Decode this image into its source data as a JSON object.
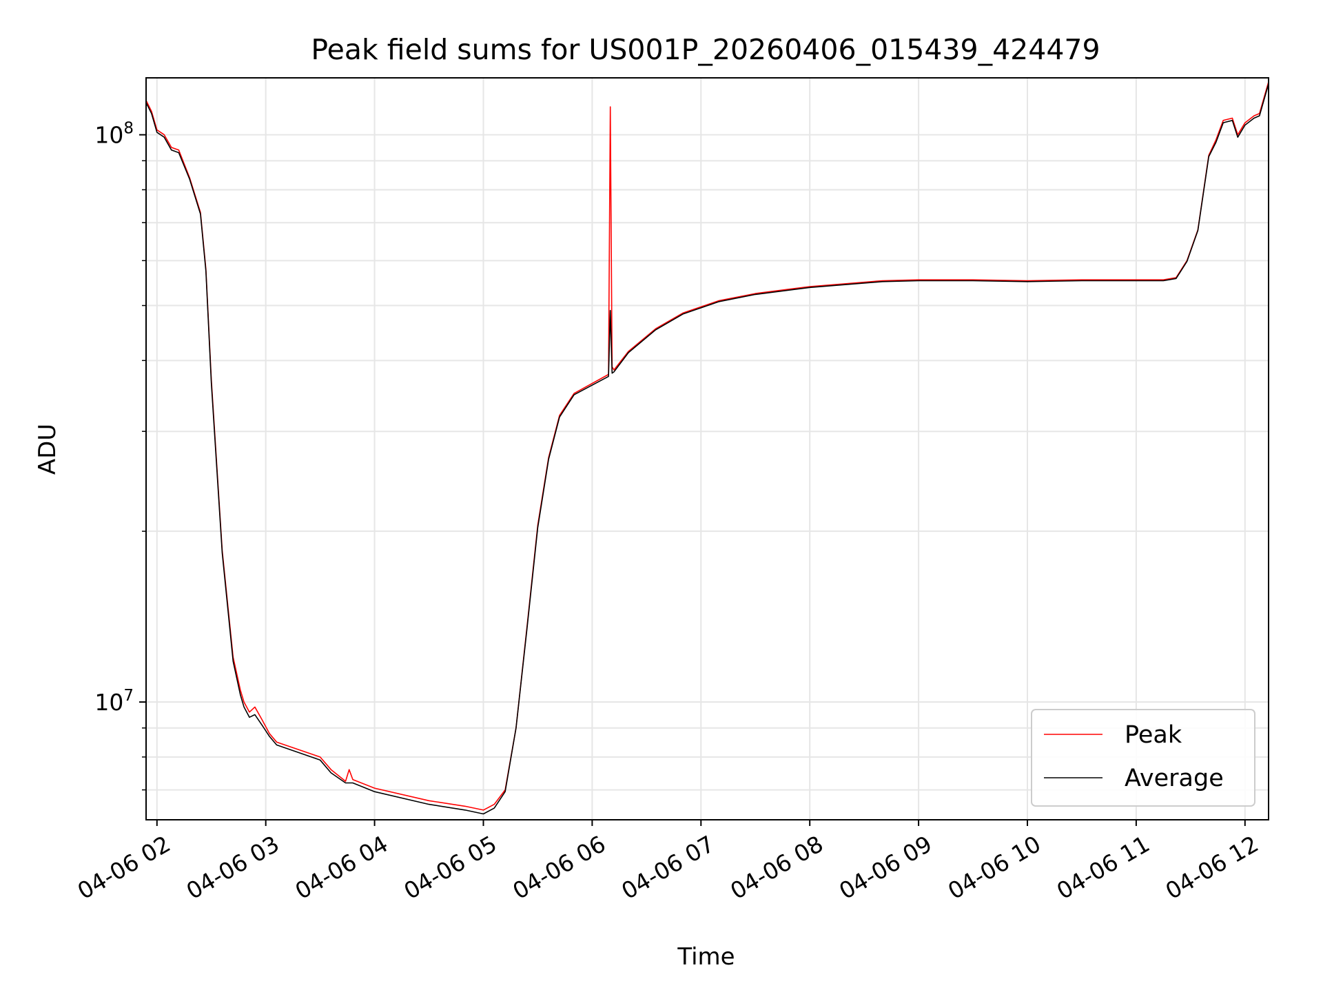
{
  "chart_data": {
    "type": "line",
    "title": "Peak field sums for US001P_20260406_015439_424479",
    "xlabel": "Time",
    "ylabel": "ADU",
    "yscale": "log",
    "ylim": [
      6200000,
      126000000
    ],
    "xlim": [
      "04-06 01:54",
      "04-06 12:13"
    ],
    "grid": true,
    "legend": "lower-right",
    "x_ticks": [
      "04-06 02",
      "04-06 03",
      "04-06 04",
      "04-06 05",
      "04-06 06",
      "04-06 07",
      "04-06 08",
      "04-06 09",
      "04-06 10",
      "04-06 11",
      "04-06 12"
    ],
    "y_ticks": [
      {
        "value": 10000000,
        "base": "10",
        "exp": "7"
      },
      {
        "value": 100000000,
        "base": "10",
        "exp": "8"
      }
    ],
    "colors": {
      "Peak": "#ff0000",
      "Average": "#000000",
      "grid": "#e6e6e6"
    },
    "series": [
      {
        "name": "Peak",
        "x": [
          "04-06 01:54",
          "04-06 01:57",
          "04-06 02:00",
          "04-06 02:04",
          "04-06 02:08",
          "04-06 02:12",
          "04-06 02:18",
          "04-06 02:24",
          "04-06 02:27",
          "04-06 02:30",
          "04-06 02:36",
          "04-06 02:42",
          "04-06 02:46",
          "04-06 02:48",
          "04-06 02:51",
          "04-06 02:54",
          "04-06 02:58",
          "04-06 03:02",
          "04-06 03:06",
          "04-06 03:30",
          "04-06 03:36",
          "04-06 03:44",
          "04-06 03:46",
          "04-06 03:48",
          "04-06 04:00",
          "04-06 04:30",
          "04-06 04:50",
          "04-06 05:00",
          "04-06 05:06",
          "04-06 05:12",
          "04-06 05:18",
          "04-06 05:24",
          "04-06 05:30",
          "04-06 05:36",
          "04-06 05:42",
          "04-06 05:50",
          "04-06 06:09",
          "04-06 06:10",
          "04-06 06:11",
          "04-06 06:12",
          "04-06 06:20",
          "04-06 06:35",
          "04-06 06:50",
          "04-06 07:10",
          "04-06 07:30",
          "04-06 08:00",
          "04-06 08:40",
          "04-06 09:00",
          "04-06 09:30",
          "04-06 10:00",
          "04-06 10:30",
          "04-06 11:00",
          "04-06 11:15",
          "04-06 11:22",
          "04-06 11:28",
          "04-06 11:34",
          "04-06 11:40",
          "04-06 11:44",
          "04-06 11:48",
          "04-06 11:53",
          "04-06 11:56",
          "04-06 12:00",
          "04-06 12:05",
          "04-06 12:08",
          "04-06 12:13"
        ],
        "y": [
          115000000,
          110000000,
          102000000,
          100000000,
          95000000,
          94000000,
          84000000,
          73000000,
          58000000,
          37000000,
          18500000,
          12000000,
          10500000,
          10000000,
          9600000,
          9800000,
          9300000,
          8800000,
          8500000,
          8000000,
          7600000,
          7250000,
          7600000,
          7300000,
          7050000,
          6700000,
          6550000,
          6450000,
          6600000,
          7000000,
          9000000,
          13500000,
          20500000,
          27000000,
          32000000,
          35000000,
          37800000,
          112000000,
          39000000,
          38500000,
          41500000,
          45500000,
          48500000,
          51000000,
          52500000,
          54000000,
          55300000,
          55500000,
          55500000,
          55300000,
          55500000,
          55500000,
          55500000,
          56000000,
          60000000,
          68000000,
          92000000,
          98000000,
          106000000,
          107000000,
          100000000,
          105000000,
          108000000,
          109000000,
          124000000
        ]
      },
      {
        "name": "Average",
        "x": [
          "04-06 01:54",
          "04-06 01:57",
          "04-06 02:00",
          "04-06 02:04",
          "04-06 02:08",
          "04-06 02:12",
          "04-06 02:18",
          "04-06 02:24",
          "04-06 02:27",
          "04-06 02:30",
          "04-06 02:36",
          "04-06 02:42",
          "04-06 02:46",
          "04-06 02:48",
          "04-06 02:51",
          "04-06 02:54",
          "04-06 02:58",
          "04-06 03:02",
          "04-06 03:06",
          "04-06 03:30",
          "04-06 03:36",
          "04-06 03:44",
          "04-06 03:48",
          "04-06 04:00",
          "04-06 04:30",
          "04-06 04:50",
          "04-06 05:00",
          "04-06 05:06",
          "04-06 05:12",
          "04-06 05:18",
          "04-06 05:24",
          "04-06 05:30",
          "04-06 05:36",
          "04-06 05:42",
          "04-06 05:50",
          "04-06 06:09",
          "04-06 06:10",
          "04-06 06:11",
          "04-06 06:12",
          "04-06 06:20",
          "04-06 06:35",
          "04-06 06:50",
          "04-06 07:10",
          "04-06 07:30",
          "04-06 08:00",
          "04-06 08:40",
          "04-06 09:00",
          "04-06 09:30",
          "04-06 10:00",
          "04-06 10:30",
          "04-06 11:00",
          "04-06 11:15",
          "04-06 11:22",
          "04-06 11:28",
          "04-06 11:34",
          "04-06 11:40",
          "04-06 11:44",
          "04-06 11:48",
          "04-06 11:53",
          "04-06 11:56",
          "04-06 12:00",
          "04-06 12:05",
          "04-06 12:08",
          "04-06 12:13"
        ],
        "y": [
          114000000,
          109000000,
          101000000,
          99000000,
          94000000,
          93000000,
          83500000,
          72500000,
          57500000,
          36500000,
          18300000,
          11800000,
          10300000,
          9800000,
          9400000,
          9500000,
          9100000,
          8700000,
          8400000,
          7900000,
          7500000,
          7200000,
          7200000,
          6950000,
          6600000,
          6450000,
          6350000,
          6500000,
          6950000,
          9000000,
          13400000,
          20300000,
          26800000,
          31800000,
          34800000,
          37500000,
          49000000,
          38000000,
          38200000,
          41300000,
          45300000,
          48300000,
          50800000,
          52300000,
          53800000,
          55100000,
          55300000,
          55300000,
          55100000,
          55300000,
          55300000,
          55300000,
          55800000,
          59800000,
          67800000,
          91500000,
          97000000,
          105000000,
          106000000,
          99000000,
          104000000,
          107000000,
          108000000,
          123000000
        ]
      }
    ]
  }
}
